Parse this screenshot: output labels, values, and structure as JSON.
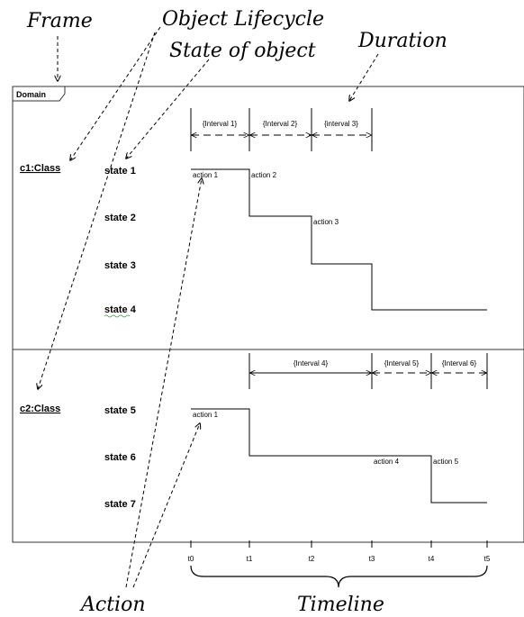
{
  "callouts": {
    "frame": "Frame",
    "lifecycle": "Object Lifecycle",
    "state_of_object": "State of object",
    "duration": "Duration",
    "action": "Action",
    "timeline": "Timeline"
  },
  "frame": {
    "name": "Domain"
  },
  "lifelines": [
    {
      "class_label": "c1:Class",
      "states": [
        "state 1",
        "state 2",
        "state 3",
        "state 4"
      ],
      "intervals": [
        "{Interval 1}",
        "{Interval 2}",
        "{interval 3}"
      ],
      "actions": [
        "action 1",
        "action 2",
        "action 3"
      ]
    },
    {
      "class_label": "c2:Class",
      "states": [
        "state 5",
        "state 6",
        "state 7"
      ],
      "intervals": [
        "{Interval 4}",
        "{Interval 5}",
        "{Interval 6}"
      ],
      "actions": [
        "action 1",
        "action 4",
        "action 5"
      ]
    }
  ],
  "time_ticks": [
    "t0",
    "t1",
    "t2",
    "t3",
    "t4",
    "t5"
  ]
}
